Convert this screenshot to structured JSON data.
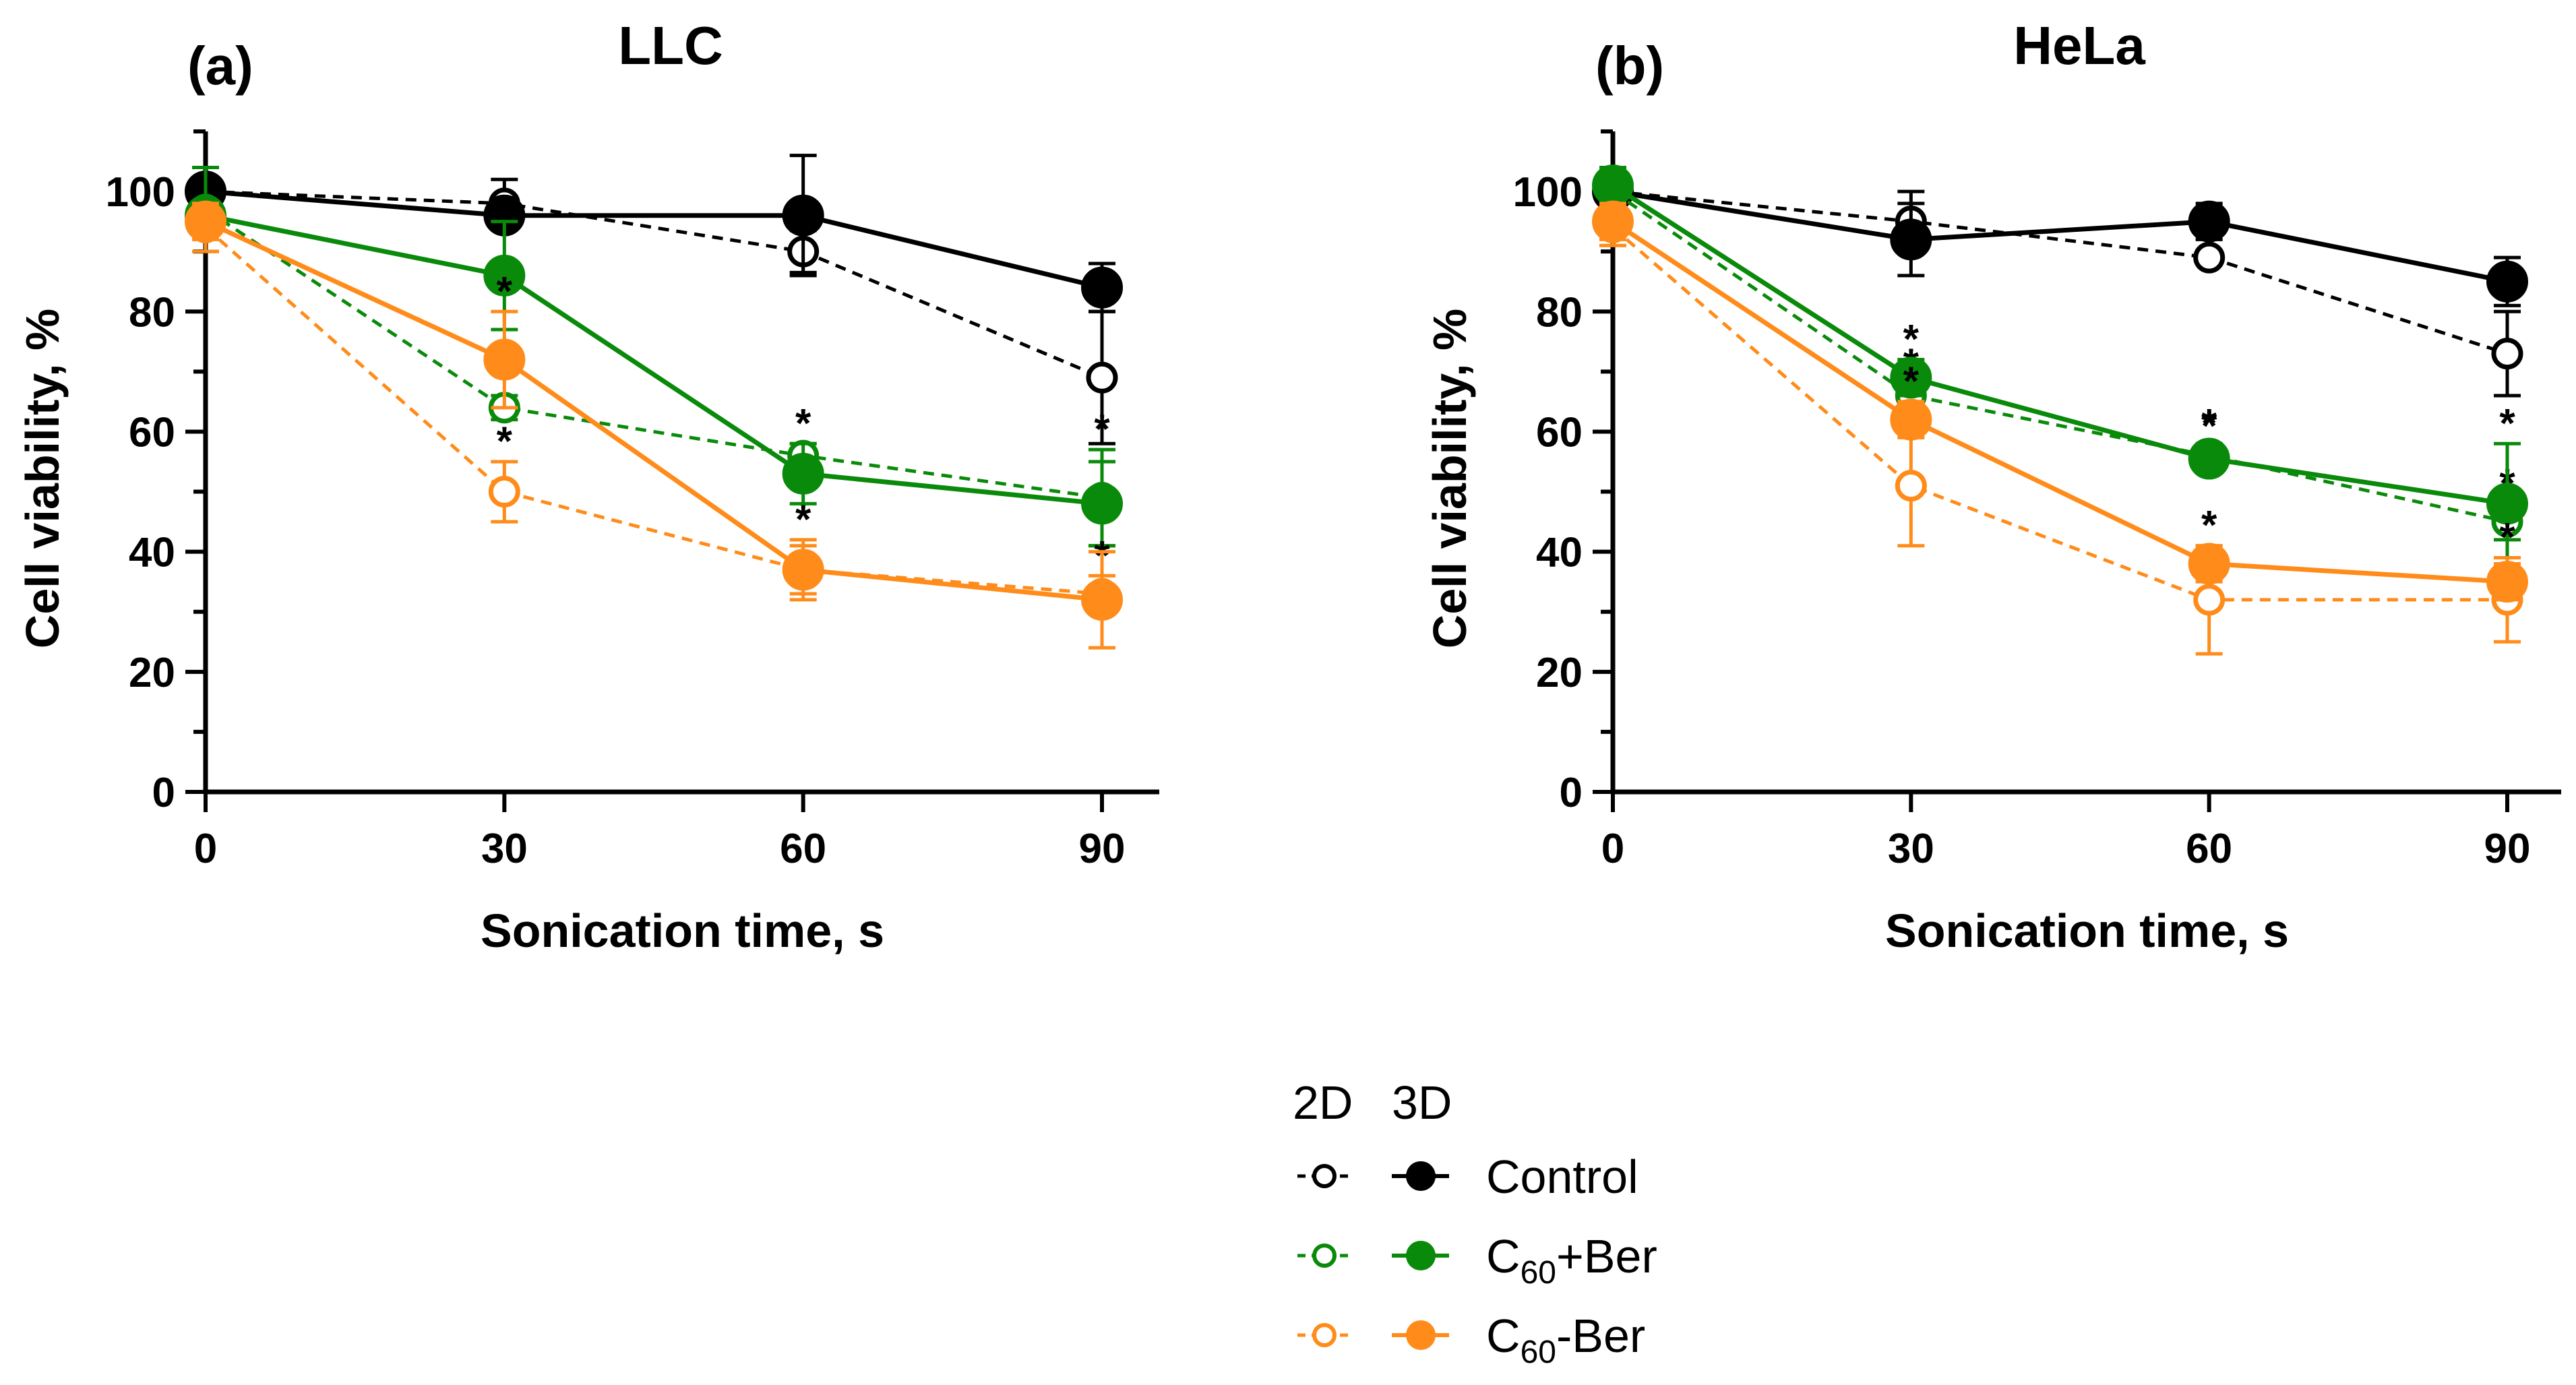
{
  "colors": {
    "control": "#000000",
    "c60_ber_plus": "#0a8a0a",
    "c60_ber_minus": "#ff8c1a"
  },
  "chart_data": [
    {
      "type": "line",
      "panel_letter": "(a)",
      "title": "LLC",
      "xlabel": "Sonication time, s",
      "ylabel": "Cell viability, %",
      "x": [
        0,
        30,
        60,
        90
      ],
      "x_tick_labels": [
        "0",
        "30",
        "60",
        "90"
      ],
      "ylim": [
        0,
        110
      ],
      "y_ticks": [
        0,
        20,
        40,
        60,
        80,
        100
      ],
      "y_tick_labels": [
        "0",
        "20",
        "40",
        "60",
        "80",
        "100"
      ],
      "series": [
        {
          "name": "Control 2D",
          "group": "control",
          "style": "dashed",
          "marker": "open",
          "values": [
            100,
            98,
            90,
            69
          ],
          "errors": [
            0,
            4,
            3.5,
            11
          ],
          "sig": [
            "",
            "",
            "",
            ""
          ]
        },
        {
          "name": "Control 3D",
          "group": "control",
          "style": "solid",
          "marker": "filled",
          "values": [
            100,
            96,
            96,
            84
          ],
          "errors": [
            0,
            2,
            10,
            4
          ],
          "sig": [
            "",
            "",
            "",
            ""
          ]
        },
        {
          "name": "C60+Ber 2D",
          "group": "c60_ber_plus",
          "style": "dashed",
          "marker": "open",
          "values": [
            97,
            64,
            56,
            49
          ],
          "errors": [
            7,
            2,
            2,
            8
          ],
          "sig": [
            "",
            "*",
            "*",
            "*"
          ]
        },
        {
          "name": "C60+Ber 3D",
          "group": "c60_ber_plus",
          "style": "solid",
          "marker": "filled",
          "values": [
            96,
            86,
            53,
            48
          ],
          "errors": [
            2,
            9,
            5,
            7
          ],
          "sig": [
            "",
            "",
            "",
            ""
          ]
        },
        {
          "name": "C60-Ber 2D",
          "group": "c60_ber_minus",
          "style": "dashed",
          "marker": "open",
          "values": [
            94,
            50,
            37,
            33
          ],
          "errors": [
            4,
            5,
            5,
            3
          ],
          "sig": [
            "",
            "*",
            "*",
            "*"
          ]
        },
        {
          "name": "C60-Ber 3D",
          "group": "c60_ber_minus",
          "style": "solid",
          "marker": "filled",
          "values": [
            95,
            72,
            37,
            32
          ],
          "errors": [
            3,
            8,
            4,
            8
          ],
          "sig": [
            "",
            "*",
            "",
            ""
          ]
        }
      ]
    },
    {
      "type": "line",
      "panel_letter": "(b)",
      "title": "HeLa",
      "xlabel": "Sonication time, s",
      "ylabel": "Cell viability, %",
      "x": [
        0,
        30,
        60,
        90
      ],
      "x_tick_labels": [
        "0",
        "30",
        "60",
        "90"
      ],
      "ylim": [
        0,
        110
      ],
      "y_ticks": [
        0,
        20,
        40,
        60,
        80,
        100
      ],
      "y_tick_labels": [
        "0",
        "20",
        "40",
        "60",
        "80",
        "100"
      ],
      "series": [
        {
          "name": "Control 2D",
          "group": "control",
          "style": "dashed",
          "marker": "open",
          "values": [
            100,
            95,
            89,
            73
          ],
          "errors": [
            0,
            5,
            1,
            7
          ],
          "sig": [
            "",
            "",
            "",
            ""
          ]
        },
        {
          "name": "Control 3D",
          "group": "control",
          "style": "solid",
          "marker": "filled",
          "values": [
            100,
            92,
            95,
            85
          ],
          "errors": [
            0,
            6,
            3,
            4
          ],
          "sig": [
            "",
            "",
            "",
            ""
          ]
        },
        {
          "name": "C60+Ber 2D",
          "group": "c60_ber_plus",
          "style": "dashed",
          "marker": "open",
          "values": [
            100,
            66,
            56,
            45
          ],
          "errors": [
            4,
            2,
            2,
            3
          ],
          "sig": [
            "",
            "*",
            "*",
            "*"
          ]
        },
        {
          "name": "C60+Ber 3D",
          "group": "c60_ber_plus",
          "style": "solid",
          "marker": "filled",
          "values": [
            101,
            69,
            55.5,
            48
          ],
          "errors": [
            3,
            3,
            2,
            10
          ],
          "sig": [
            "",
            "*",
            "*",
            "*"
          ]
        },
        {
          "name": "C60-Ber 2D",
          "group": "c60_ber_minus",
          "style": "dashed",
          "marker": "open",
          "values": [
            94,
            51,
            32,
            32
          ],
          "errors": [
            3,
            10,
            9,
            7
          ],
          "sig": [
            "",
            "",
            "",
            "*"
          ]
        },
        {
          "name": "C60-Ber 3D",
          "group": "c60_ber_minus",
          "style": "solid",
          "marker": "filled",
          "values": [
            95,
            62,
            38,
            35
          ],
          "errors": [
            3,
            3,
            3,
            3
          ],
          "sig": [
            "",
            "*",
            "*",
            ""
          ]
        }
      ]
    }
  ],
  "legend": {
    "header_2d": "2D",
    "header_3d": "3D",
    "items": [
      {
        "group": "control",
        "label": "Control",
        "prefix": "",
        "sub": "",
        "suffix": ""
      },
      {
        "group": "c60_ber_plus",
        "label": "C60+Ber",
        "prefix": "C",
        "sub": "60",
        "suffix": "+Ber"
      },
      {
        "group": "c60_ber_minus",
        "label": "C60-Ber",
        "prefix": "C",
        "sub": "60",
        "suffix": "-Ber"
      }
    ]
  }
}
